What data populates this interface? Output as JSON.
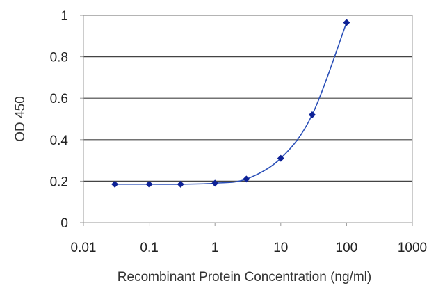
{
  "chart_data": {
    "type": "line",
    "xscale": "log",
    "xlim": [
      0.01,
      1000
    ],
    "ylim": [
      0,
      1
    ],
    "xlabel": "Recombinant Protein Concentration (ng/ml)",
    "ylabel": "OD 450",
    "x_ticks": [
      0.01,
      0.1,
      1,
      10,
      100,
      1000
    ],
    "x_tick_labels": [
      "0.01",
      "0.1",
      "1",
      "10",
      "100",
      "1000"
    ],
    "y_ticks": [
      0,
      0.2,
      0.4,
      0.6,
      0.8,
      1
    ],
    "y_tick_labels": [
      "0",
      "0.2",
      "0.4",
      "0.6",
      "0.8",
      "1"
    ],
    "grid": "horizontal",
    "colors": {
      "series": "#2a4fb8",
      "marker": "#0d2196",
      "grid": "#444444",
      "axis": "#999999"
    },
    "series": [
      {
        "x": [
          0.03,
          0.1,
          0.3,
          1,
          3,
          10,
          30,
          100
        ],
        "values": [
          0.185,
          0.185,
          0.185,
          0.19,
          0.21,
          0.31,
          0.52,
          0.965
        ]
      }
    ]
  }
}
